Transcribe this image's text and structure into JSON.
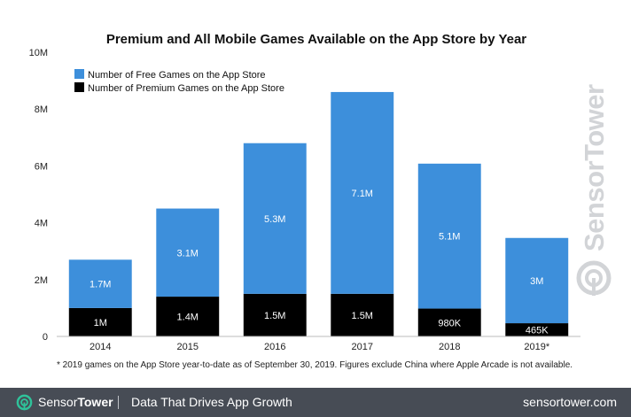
{
  "chart_data": {
    "type": "bar",
    "stacked": true,
    "title": "Premium and All Mobile Games Available on the App Store by Year",
    "xlabel": "",
    "ylabel": "",
    "ylim": [
      0,
      10000000
    ],
    "yticks": [
      0,
      2000000,
      4000000,
      6000000,
      8000000,
      10000000
    ],
    "ytick_labels": [
      "0",
      "2M",
      "4M",
      "6M",
      "8M",
      "10M"
    ],
    "grid": false,
    "legend_position": "top-left",
    "categories": [
      "2014",
      "2015",
      "2016",
      "2017",
      "2018",
      "2019*"
    ],
    "series": [
      {
        "name": "Number of Premium Games on the App Store",
        "color": "#000000",
        "label_color": "#ffffff",
        "values": [
          1000000,
          1400000,
          1500000,
          1500000,
          980000,
          465000
        ],
        "labels": [
          "1M",
          "1.4M",
          "1.5M",
          "1.5M",
          "980K",
          "465K"
        ]
      },
      {
        "name": "Number of Free Games on the App Store",
        "color": "#3d8fdb",
        "label_color": "#ffffff",
        "values": [
          1700000,
          3100000,
          5300000,
          7100000,
          5100000,
          3000000
        ],
        "labels": [
          "1.7M",
          "3.1M",
          "5.3M",
          "7.1M",
          "5.1M",
          "3M"
        ]
      }
    ],
    "legend_order": [
      1,
      0
    ],
    "footnote": "* 2019 games on the App Store year-to-date as of September 30, 2019. Figures exclude China where Apple Arcade is not available."
  },
  "footer": {
    "brand_light": "Sensor",
    "brand_bold": "Tower",
    "tagline": "Data That Drives App Growth",
    "url": "sensortower.com",
    "background": "#474c55"
  },
  "watermark": {
    "text": "SensorTower",
    "color": "#d2d4d7"
  },
  "icons": {
    "footer_logo": "sensortower-logo-icon",
    "watermark_logo": "sensortower-logo-icon"
  }
}
